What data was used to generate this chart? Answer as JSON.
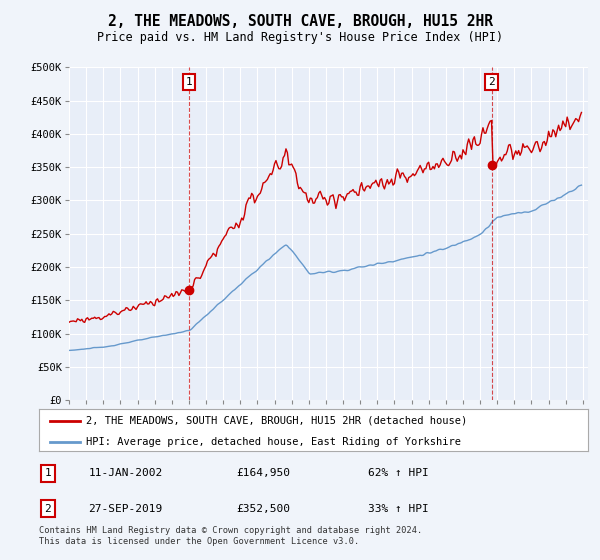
{
  "title": "2, THE MEADOWS, SOUTH CAVE, BROUGH, HU15 2HR",
  "subtitle": "Price paid vs. HM Land Registry's House Price Index (HPI)",
  "hpi_label": "HPI: Average price, detached house, East Riding of Yorkshire",
  "property_label": "2, THE MEADOWS, SOUTH CAVE, BROUGH, HU15 2HR (detached house)",
  "transaction1_date": "11-JAN-2002",
  "transaction1_price": 164950,
  "transaction1_hpi": "62% ↑ HPI",
  "transaction2_date": "27-SEP-2019",
  "transaction2_price": 352500,
  "transaction2_hpi": "33% ↑ HPI",
  "footer": "Contains HM Land Registry data © Crown copyright and database right 2024.\nThis data is licensed under the Open Government Licence v3.0.",
  "bg_color": "#f0f4fa",
  "plot_bg": "#e8eef8",
  "grid_color": "#ffffff",
  "hpi_color": "#6699cc",
  "property_color": "#cc0000",
  "ylim": [
    0,
    500000
  ],
  "yticks": [
    0,
    50000,
    100000,
    150000,
    200000,
    250000,
    300000,
    350000,
    400000,
    450000,
    500000
  ],
  "ytick_labels": [
    "£0",
    "£50K",
    "£100K",
    "£150K",
    "£200K",
    "£250K",
    "£300K",
    "£350K",
    "£400K",
    "£450K",
    "£500K"
  ]
}
